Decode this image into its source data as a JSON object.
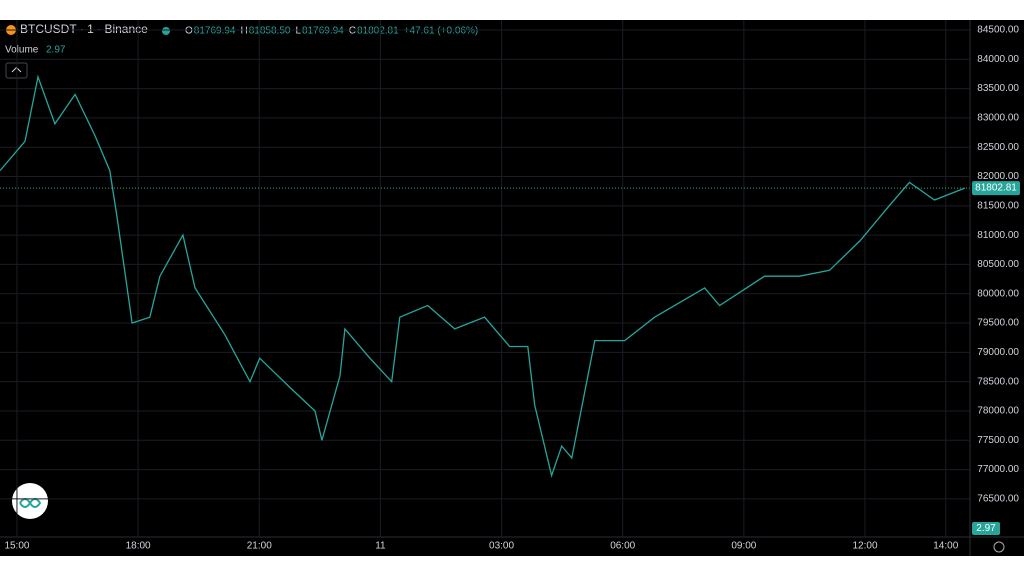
{
  "header": {
    "symbol": "BTCUSDT · 1 · Binance",
    "ohlc": [
      {
        "key": "O",
        "value": "81769.94"
      },
      {
        "key": "H",
        "value": "81858.50"
      },
      {
        "key": "L",
        "value": "81769.94"
      },
      {
        "key": "C",
        "value": "81802.81"
      }
    ],
    "change": "+47.61 (+0.06%)",
    "volume_label": "Volume",
    "volume_value": "2.97"
  },
  "chart_data": {
    "type": "line",
    "color": "#26a69a",
    "x": [
      -0.42,
      0.2,
      0.52,
      0.94,
      1.44,
      1.93,
      2.3,
      2.48,
      2.85,
      3.29,
      3.54,
      4.11,
      4.41,
      5.15,
      5.77,
      6.01,
      6.76,
      7.38,
      7.55,
      8.0,
      8.12,
      8.74,
      9.28,
      9.48,
      10.17,
      10.84,
      11.58,
      12.2,
      12.65,
      12.82,
      13.24,
      13.49,
      13.74,
      14.31,
      15.05,
      15.79,
      17.03,
      17.4,
      18.51,
      19.38,
      20.12,
      20.87,
      21.6,
      22.1,
      22.72,
      23.47
    ],
    "series": [
      {
        "name": "BTCUSDT",
        "color": "#26a69a",
        "values": [
          82100,
          82600,
          83700,
          82900,
          83400,
          82700,
          82100,
          81300,
          79500,
          79600,
          80300,
          81000,
          80100,
          79300,
          78500,
          78900,
          78400,
          78000,
          77500,
          78600,
          79400,
          78900,
          78500,
          79600,
          79800,
          79400,
          79600,
          79100,
          79100,
          78100,
          76900,
          77400,
          77200,
          79200,
          79200,
          79600,
          80100,
          79800,
          80300,
          80300,
          80400,
          80900,
          81500,
          81900,
          81600,
          81802.81
        ]
      }
    ],
    "last_price": {
      "value": 81802.81,
      "label": "81802.81"
    },
    "last_volume": "2.97",
    "xlim": [
      -0.42,
      23.6
    ],
    "ylim": [
      75850,
      84670
    ],
    "xticks": [
      {
        "value": 0,
        "label": "15:00"
      },
      {
        "value": 3,
        "label": "18:00"
      },
      {
        "value": 6,
        "label": "21:00"
      },
      {
        "value": 9,
        "label": "11"
      },
      {
        "value": 12,
        "label": "03:00"
      },
      {
        "value": 15,
        "label": "06:00"
      },
      {
        "value": 18,
        "label": "09:00"
      },
      {
        "value": 21,
        "label": "12:00"
      },
      {
        "value": 23,
        "label": "14:00"
      }
    ],
    "yticks": [
      {
        "value": 76500,
        "label": "76500.00"
      },
      {
        "value": 77000,
        "label": "77000.00"
      },
      {
        "value": 77500,
        "label": "77500.00"
      },
      {
        "value": 78000,
        "label": "78000.00"
      },
      {
        "value": 78500,
        "label": "78500.00"
      },
      {
        "value": 79000,
        "label": "79000.00"
      },
      {
        "value": 79500,
        "label": "79500.00"
      },
      {
        "value": 80000,
        "label": "80000.00"
      },
      {
        "value": 80500,
        "label": "80500.00"
      },
      {
        "value": 81000,
        "label": "81000.00"
      },
      {
        "value": 81500,
        "label": "81500.00"
      },
      {
        "value": 82000,
        "label": "82000.00"
      },
      {
        "value": 82500,
        "label": "82500.00"
      },
      {
        "value": 83000,
        "label": "83000.00"
      },
      {
        "value": 83500,
        "label": "83500.00"
      },
      {
        "value": 84000,
        "label": "84000.00"
      },
      {
        "value": 84500,
        "label": "84500.00"
      }
    ],
    "grid": true
  }
}
